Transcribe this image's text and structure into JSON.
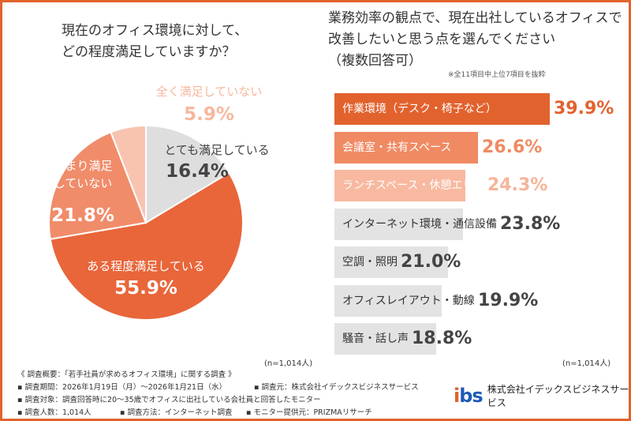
{
  "colors": {
    "frame": "#e2622e",
    "dark_orange": "#e2622e",
    "orange": "#f08a63",
    "peach": "#f7b79d",
    "gray": "#e3e3e3"
  },
  "chart_data": [
    {
      "type": "pie",
      "title": "現在のオフィス環境に対して、どの程度満足していますか？",
      "slices": [
        {
          "label": "とても満足している",
          "value": 16.4,
          "display": "16.4%",
          "color": "#dedede",
          "text_color": "#444"
        },
        {
          "label": "ある程度満足している",
          "value": 55.9,
          "display": "55.9%",
          "color": "#e8663a",
          "text_color": "#ffffff"
        },
        {
          "label": "あまり満足していない",
          "label_lines": [
            "あまり満足",
            "していない"
          ],
          "value": 21.8,
          "display": "21.8%",
          "color": "#f08c6a",
          "text_color": "#ffffff"
        },
        {
          "label": "全く満足していない",
          "value": 5.9,
          "display": "5.9%",
          "color": "#f8c4b0",
          "text_color": "#f7b79d"
        }
      ],
      "note": "(n=1,014人)"
    },
    {
      "type": "bar",
      "orientation": "horizontal",
      "title": "業務効率の観点で、現在出社しているオフィスで改善したいと思う点を選んでください",
      "subtitle": "（複数回答可）",
      "note_top": "※全11項目中上位7項目を抜粋",
      "categories": [
        "作業環境（デスク・椅子など）",
        "会議室・共有スペース",
        "ランチスペース・休憩エリア",
        "インターネット環境・通信設備",
        "空調・照明",
        "オフィスレイアウト・動線",
        "騒音・話し声"
      ],
      "values": [
        39.9,
        26.6,
        24.3,
        23.8,
        21.0,
        19.9,
        18.8
      ],
      "display": [
        "39.9%",
        "26.6%",
        "24.3%",
        "23.8%",
        "21.0%",
        "19.9%",
        "18.8%"
      ],
      "bar_colors": [
        "#e2622e",
        "#f08a63",
        "#f8b9a0",
        "#e3e3e3",
        "#e3e3e3",
        "#e3e3e3",
        "#e3e3e3"
      ],
      "label_colors": [
        "#ffffff",
        "#ffffff",
        "#ffffff",
        "#333333",
        "#333333",
        "#333333",
        "#333333"
      ],
      "value_colors": [
        "#e2622e",
        "#f08a63",
        "#f6b49a",
        "#444444",
        "#444444",
        "#444444",
        "#444444"
      ],
      "note": "(n=1,014人)"
    }
  ],
  "footer": {
    "overview": "《 調査概要：「若手社員が求めるオフィス環境」に関する調査 》",
    "period": "▪ 調査期間：2026年1月19日（月）～2026年1月21日（水）",
    "source": "▪ 調査元：株式会社イデックスビジネスサービス",
    "target": "▪ 調査対象：調査回答時に20～35歳でオフィスに出社している会社員と回答したモニター",
    "count": "▪ 調査人数：1,014人",
    "method": "▪ 調査方法：インターネット調査",
    "provider": "▪ モニター提供元：PRIZMAリサーチ"
  },
  "logo": {
    "mark": "ibs",
    "company": "株式会社イデックスビジネスサービス"
  }
}
